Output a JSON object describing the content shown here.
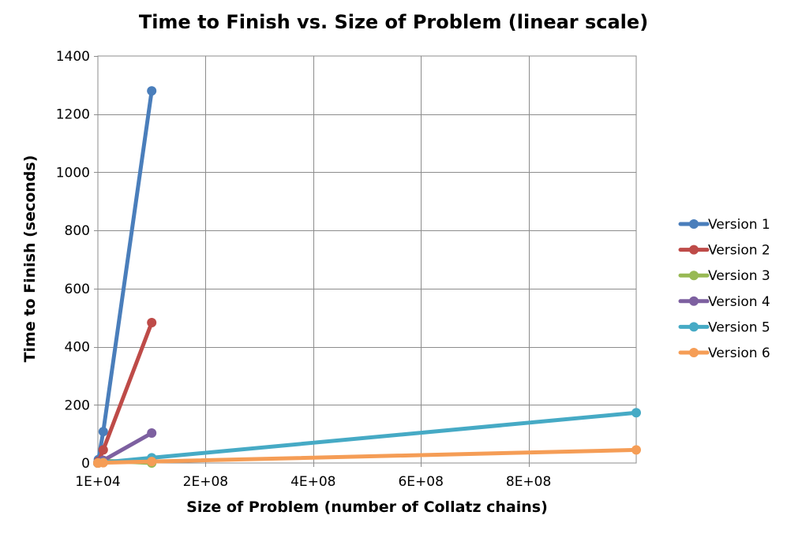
{
  "chart_data": {
    "type": "line",
    "title": "Time to Finish vs. Size of Problem (linear scale)",
    "xlabel": "Size of Problem (number of Collatz chains)",
    "ylabel": "Time to Finish (seconds)",
    "xlim": [
      10000,
      1000000000
    ],
    "ylim": [
      0,
      1400
    ],
    "x_ticks": [
      {
        "value": 10000,
        "label": "1E+04"
      },
      {
        "value": 200000000,
        "label": "2E+08"
      },
      {
        "value": 400000000,
        "label": "4E+08"
      },
      {
        "value": 600000000,
        "label": "6E+08"
      },
      {
        "value": 800000000,
        "label": "8E+08"
      }
    ],
    "y_ticks": [
      {
        "value": 0,
        "label": "0"
      },
      {
        "value": 200,
        "label": "200"
      },
      {
        "value": 400,
        "label": "400"
      },
      {
        "value": 600,
        "label": "600"
      },
      {
        "value": 800,
        "label": "800"
      },
      {
        "value": 1000,
        "label": "1000"
      },
      {
        "value": 1200,
        "label": "1200"
      },
      {
        "value": 1400,
        "label": "1400"
      }
    ],
    "grid": true,
    "legend_position": "right",
    "series": [
      {
        "name": "Version 1",
        "color": "#4a7ebb",
        "points": [
          [
            10000,
            0
          ],
          [
            100000,
            1
          ],
          [
            1000000,
            12
          ],
          [
            10000000,
            108
          ],
          [
            100000000,
            1280
          ]
        ]
      },
      {
        "name": "Version 2",
        "color": "#be4b48",
        "points": [
          [
            10000,
            0
          ],
          [
            100000,
            1
          ],
          [
            1000000,
            5
          ],
          [
            10000000,
            45
          ],
          [
            100000000,
            483
          ]
        ]
      },
      {
        "name": "Version 3",
        "color": "#98b954",
        "points": [
          [
            10000,
            0
          ],
          [
            100000,
            0
          ],
          [
            1000000,
            1
          ],
          [
            10000000,
            8
          ],
          [
            100000000,
            0
          ]
        ]
      },
      {
        "name": "Version 4",
        "color": "#7d60a0",
        "points": [
          [
            10000,
            0
          ],
          [
            100000,
            0
          ],
          [
            1000000,
            1
          ],
          [
            10000000,
            9
          ],
          [
            100000000,
            103
          ]
        ]
      },
      {
        "name": "Version 5",
        "color": "#46aac5",
        "points": [
          [
            10000,
            0
          ],
          [
            100000,
            0
          ],
          [
            1000000,
            1
          ],
          [
            10000000,
            2
          ],
          [
            100000000,
            18
          ],
          [
            1000000000,
            173
          ]
        ]
      },
      {
        "name": "Version 6",
        "color": "#f59d56",
        "points": [
          [
            10000,
            0
          ],
          [
            100000,
            0
          ],
          [
            1000000,
            0
          ],
          [
            10000000,
            1
          ],
          [
            100000000,
            5
          ],
          [
            1000000000,
            45
          ]
        ]
      }
    ]
  }
}
